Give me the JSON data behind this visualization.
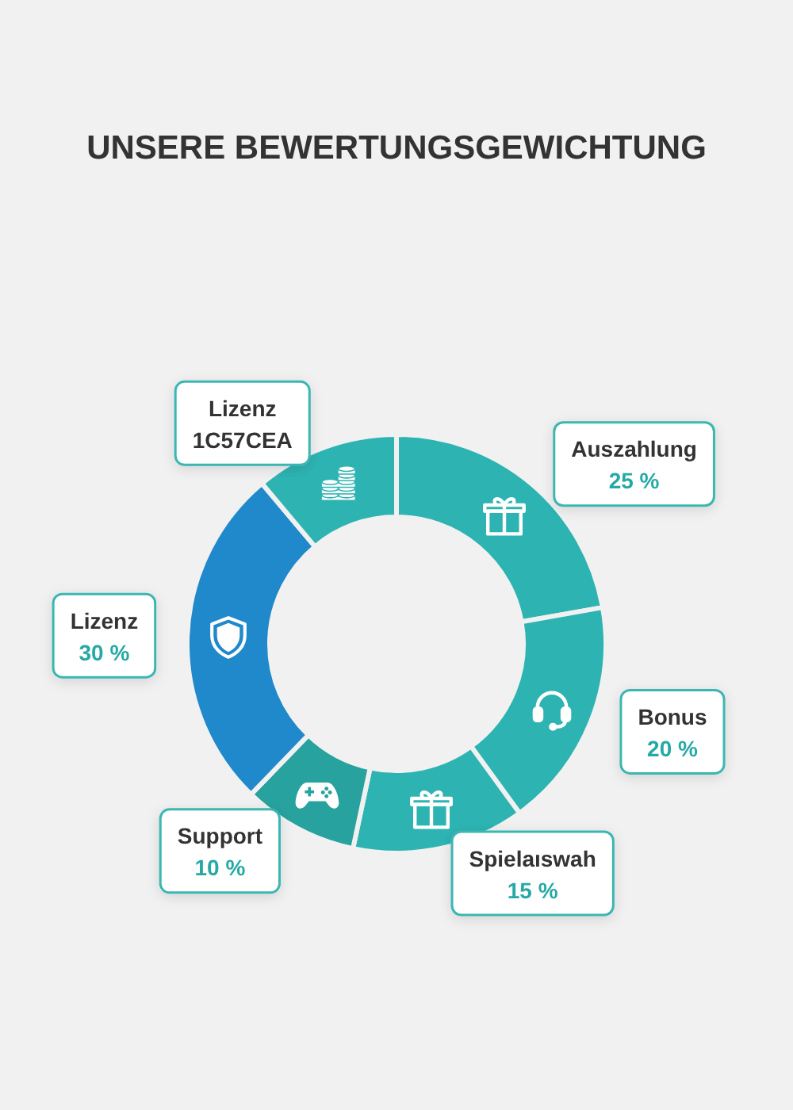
{
  "chart_data": {
    "type": "donut",
    "title": "UNSERE BEWERTUNGSGEWICHTUNG",
    "categories": [
      "Auszahlung",
      "Bonus",
      "Spielaıswah",
      "Support",
      "Lizenz",
      "Lizenz\n1C57CEA"
    ],
    "values": [
      25,
      20,
      15,
      10,
      30,
      12.5
    ],
    "value_labels": [
      "25 %",
      "20 %",
      "15 %",
      "10 %",
      "30 %",
      null
    ],
    "colors": [
      "#2db4b2",
      "#2db4b2",
      "#2db4b2",
      "#27a29e",
      "#1f89cb",
      "#2db4b2"
    ]
  }
}
